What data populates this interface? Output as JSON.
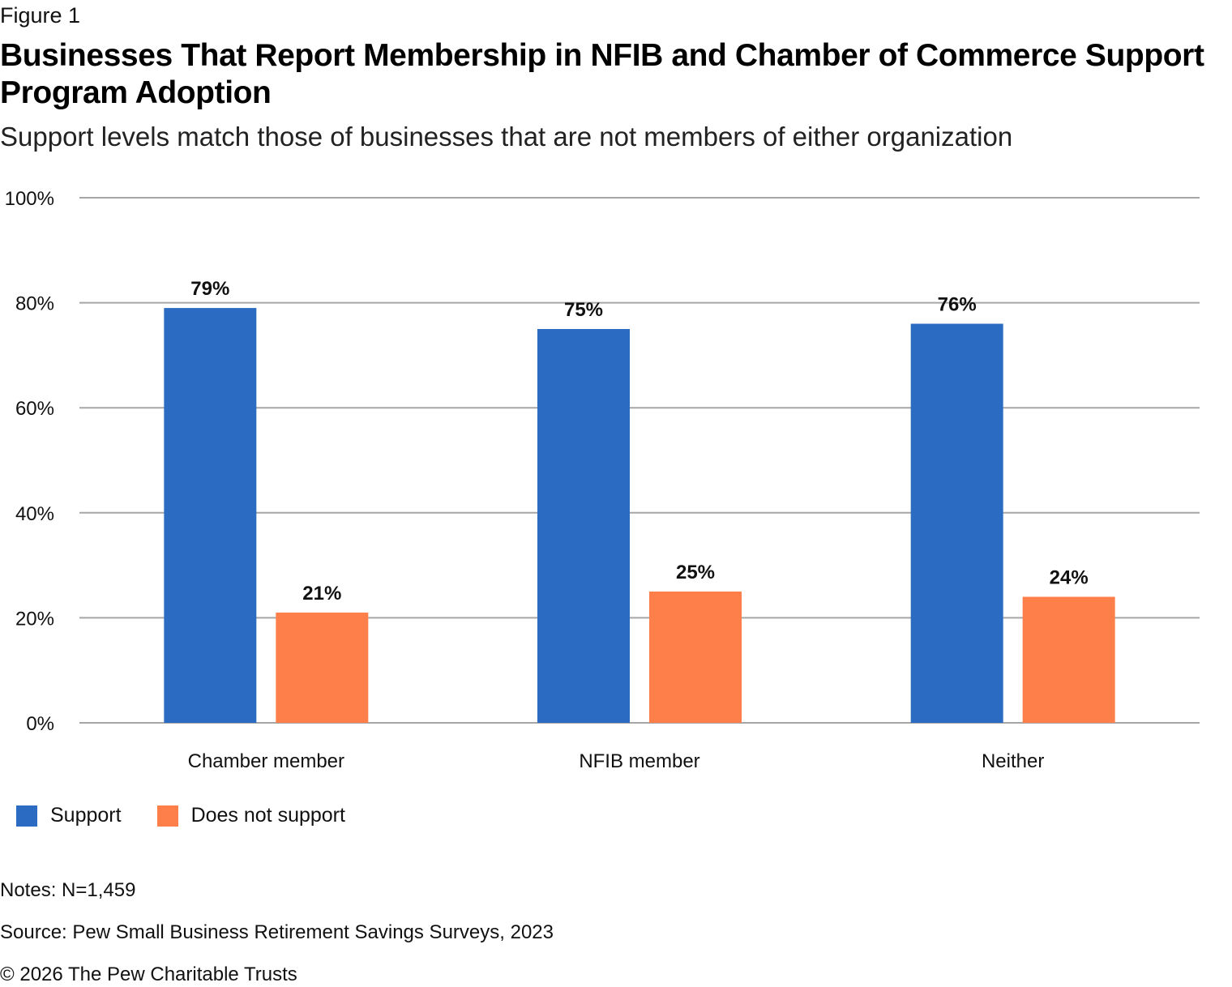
{
  "figure_label": "Figure 1",
  "title": "Businesses That Report Membership in NFIB and Chamber of Commerce Support Program Adoption",
  "subtitle": "Support levels match those of businesses that are not members of either organization",
  "notes": "Notes: N=1,459",
  "source": "Source: Pew Small Business Retirement Savings Surveys, 2023",
  "copyright": "© 2026 The Pew Charitable Trusts",
  "chart_data": {
    "type": "bar",
    "title": "Businesses That Report Membership in NFIB and Chamber of Commerce Support Program Adoption",
    "subtitle": "Support levels match those of businesses that are not members of either organization",
    "xlabel": "",
    "ylabel": "",
    "categories": [
      "Chamber member",
      "NFIB member",
      "Neither"
    ],
    "series": [
      {
        "name": "Support",
        "color": "#2B6CC2",
        "values": [
          79,
          75,
          76
        ],
        "labels": [
          "79%",
          "75%",
          "76%"
        ]
      },
      {
        "name": "Does not support",
        "color": "#FF7F4A",
        "values": [
          21,
          25,
          24
        ],
        "labels": [
          "21%",
          "25%",
          "24%"
        ]
      }
    ],
    "ylim": [
      0,
      100
    ],
    "yticks": [
      0,
      20,
      40,
      60,
      80,
      100
    ],
    "ytick_labels": [
      "0%",
      "20%",
      "40%",
      "60%",
      "80%",
      "100%"
    ],
    "grid": true,
    "gridline_color": "#A6A6A6",
    "legend_position": "bottom-left"
  }
}
